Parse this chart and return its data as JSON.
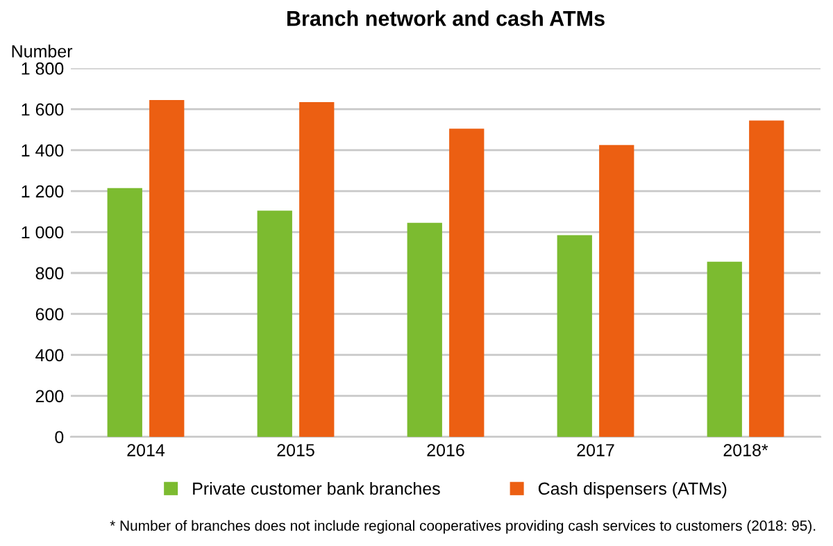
{
  "chart_data": {
    "type": "bar",
    "title": "Branch network and cash ATMs",
    "ylabel": "Number",
    "categories": [
      "2014",
      "2015",
      "2016",
      "2017",
      "2018*"
    ],
    "series": [
      {
        "name": "Private customer bank branches",
        "color": "#7cbb30",
        "values": [
          1210,
          1100,
          1040,
          980,
          850
        ]
      },
      {
        "name": "Cash dispensers (ATMs)",
        "color": "#ec5f12",
        "values": [
          1640,
          1630,
          1500,
          1420,
          1540
        ]
      }
    ],
    "ylim": [
      0,
      1800
    ],
    "yticks": [
      0,
      200,
      400,
      600,
      800,
      {
        "value": 1000,
        "label": "1 000"
      },
      {
        "value": 1200,
        "label": "1 200"
      },
      {
        "value": 1400,
        "label": "1 400"
      },
      {
        "value": 1600,
        "label": "1 600"
      },
      {
        "value": 1800,
        "label": "1 800"
      }
    ],
    "grid": "y",
    "legend": "bottom",
    "annotations": [
      "* Number of branches does not include regional cooperatives providing cash services to customers (2018: 95)."
    ]
  }
}
